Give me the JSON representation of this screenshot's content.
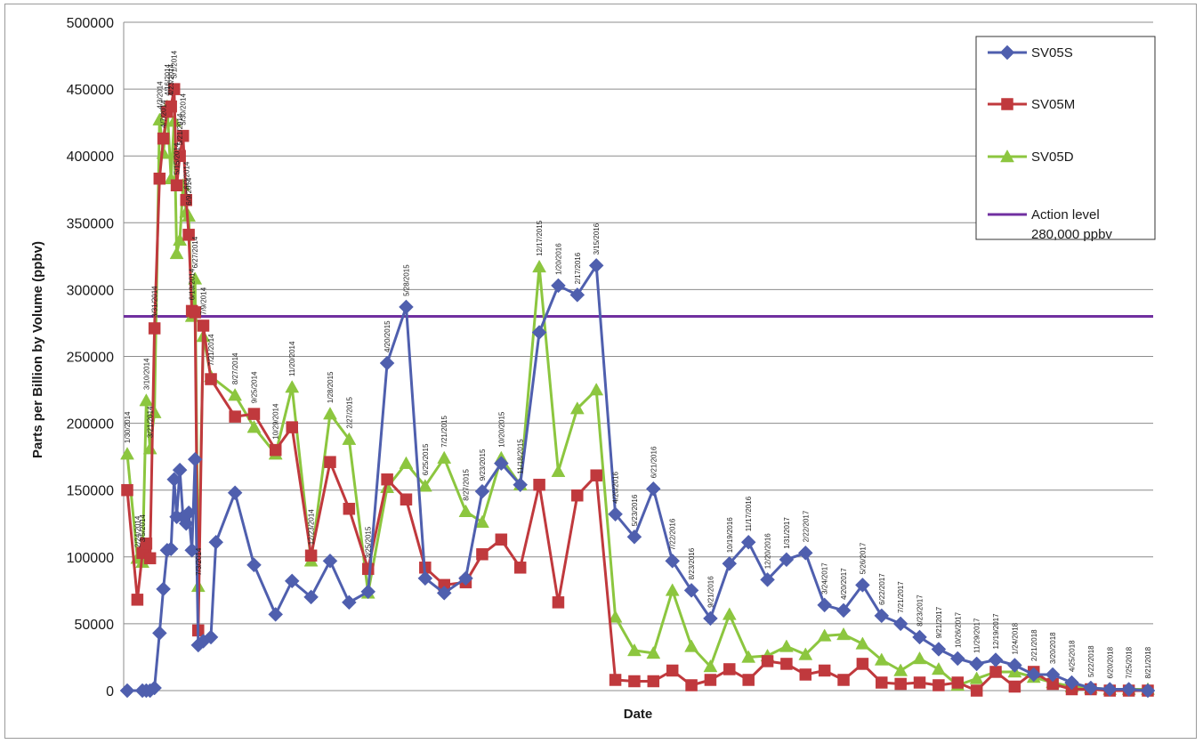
{
  "chart_data": {
    "type": "line",
    "title": "",
    "xlabel": "Date",
    "ylabel": "Parts per Billion by Volume (ppbv)",
    "ylim": [
      0,
      500000
    ],
    "yticks": [
      "0",
      "50000",
      "100000",
      "150000",
      "200000",
      "250000",
      "300000",
      "350000",
      "400000",
      "450000",
      "500000"
    ],
    "grid": "horizontal",
    "legend_position": "top-right",
    "date_labels": [
      {
        "x": 1.0,
        "text": "1/30/2014"
      },
      {
        "x": 2.6,
        "text": "2/24/2014"
      },
      {
        "x": 3.4,
        "text": "3/5/2014"
      },
      {
        "x": 4.0,
        "text": "3/10/2014"
      },
      {
        "x": 4.6,
        "text": "3/21/2014"
      },
      {
        "x": 5.3,
        "text": "3/31/2014"
      },
      {
        "x": 6.1,
        "text": "4/3/2014"
      },
      {
        "x": 6.7,
        "text": "4/7/2014"
      },
      {
        "x": 7.3,
        "text": "4/16/2014"
      },
      {
        "x": 7.9,
        "text": "4/23/2014"
      },
      {
        "x": 8.4,
        "text": "5/1/2014"
      },
      {
        "x": 8.8,
        "text": "5/15/2014"
      },
      {
        "x": 9.3,
        "text": "5/21/2014"
      },
      {
        "x": 9.8,
        "text": "5/30/2014"
      },
      {
        "x": 10.3,
        "text": "6/3/2014"
      },
      {
        "x": 10.7,
        "text": "6/9/2014"
      },
      {
        "x": 11.2,
        "text": "6/19/2014"
      },
      {
        "x": 11.7,
        "text": "6/27/2014"
      },
      {
        "x": 12.2,
        "text": "7/3/2014"
      },
      {
        "x": 13.0,
        "text": "7/9/2014"
      },
      {
        "x": 14.2,
        "text": "7/21/2014"
      },
      {
        "x": 18.0,
        "text": "8/27/2014"
      },
      {
        "x": 21.0,
        "text": "9/25/2014"
      },
      {
        "x": 24.4,
        "text": "10/29/2014"
      },
      {
        "x": 27.0,
        "text": "11/20/2014"
      },
      {
        "x": 30.0,
        "text": "12/23/2014"
      },
      {
        "x": 33.0,
        "text": "1/28/2015"
      },
      {
        "x": 36.0,
        "text": "2/27/2015"
      },
      {
        "x": 39.0,
        "text": "3/25/2015"
      },
      {
        "x": 42.0,
        "text": "4/20/2015"
      },
      {
        "x": 45.0,
        "text": "5/28/2015"
      },
      {
        "x": 48.0,
        "text": "6/25/2015"
      },
      {
        "x": 51.0,
        "text": "7/21/2015"
      },
      {
        "x": 54.4,
        "text": "8/27/2015"
      },
      {
        "x": 57.0,
        "text": "9/23/2015"
      },
      {
        "x": 60.0,
        "text": "10/20/2015"
      },
      {
        "x": 63.0,
        "text": "11/18/2015"
      },
      {
        "x": 66.0,
        "text": "12/17/2015"
      },
      {
        "x": 69.0,
        "text": "1/20/2016"
      },
      {
        "x": 72.0,
        "text": "2/17/2016"
      },
      {
        "x": 75.0,
        "text": "3/15/2016"
      },
      {
        "x": 78.0,
        "text": "4/20/2016"
      },
      {
        "x": 81.0,
        "text": "5/23/2016"
      },
      {
        "x": 84.0,
        "text": "6/21/2016"
      },
      {
        "x": 87.0,
        "text": "7/22/2016"
      },
      {
        "x": 90.0,
        "text": "8/23/2016"
      },
      {
        "x": 93.0,
        "text": "9/21/2016"
      },
      {
        "x": 96.0,
        "text": "10/19/2016"
      },
      {
        "x": 99.0,
        "text": "11/17/2016"
      },
      {
        "x": 102.0,
        "text": "12/20/2016"
      },
      {
        "x": 105.0,
        "text": "1/31/2017"
      },
      {
        "x": 108.0,
        "text": "2/22/2017"
      },
      {
        "x": 111.0,
        "text": "3/24/2017"
      },
      {
        "x": 114.0,
        "text": "4/20/2017"
      },
      {
        "x": 117.0,
        "text": "5/26/2017"
      },
      {
        "x": 120.0,
        "text": "6/22/2017"
      },
      {
        "x": 123.0,
        "text": "7/21/2017"
      },
      {
        "x": 126.0,
        "text": "8/23/2017"
      },
      {
        "x": 129.0,
        "text": "9/21/2017"
      },
      {
        "x": 132.0,
        "text": "10/26/2017"
      },
      {
        "x": 135.0,
        "text": "11/29/2017"
      },
      {
        "x": 138.0,
        "text": "12/19/2017"
      },
      {
        "x": 141.0,
        "text": "1/24/2018"
      },
      {
        "x": 144.0,
        "text": "2/21/2018"
      },
      {
        "x": 147.0,
        "text": "3/20/2018"
      },
      {
        "x": 150.0,
        "text": "4/25/2018"
      },
      {
        "x": 153.0,
        "text": "5/22/2018"
      },
      {
        "x": 156.0,
        "text": "6/20/2018"
      },
      {
        "x": 159.0,
        "text": "7/25/2018"
      },
      {
        "x": 162.0,
        "text": "8/21/2018"
      }
    ],
    "series": [
      {
        "name": "SV05S",
        "color": "#4f5fae",
        "marker": "diamond",
        "points": [
          [
            1.0,
            0
          ],
          [
            3.4,
            0
          ],
          [
            4.0,
            0
          ],
          [
            4.6,
            0
          ],
          [
            5.3,
            2000
          ],
          [
            6.1,
            43000
          ],
          [
            6.7,
            76000
          ],
          [
            7.3,
            105000
          ],
          [
            7.9,
            106000
          ],
          [
            8.4,
            158000
          ],
          [
            8.8,
            130000
          ],
          [
            9.3,
            165000
          ],
          [
            9.8,
            130000
          ],
          [
            10.3,
            125000
          ],
          [
            10.7,
            133000
          ],
          [
            11.2,
            105000
          ],
          [
            11.7,
            173000
          ],
          [
            12.2,
            34000
          ],
          [
            13.0,
            37000
          ],
          [
            14.2,
            40000
          ],
          [
            15.0,
            111000
          ],
          [
            18.0,
            148000
          ],
          [
            21.0,
            94000
          ],
          [
            24.4,
            57000
          ],
          [
            27.0,
            82000
          ],
          [
            30.0,
            70000
          ],
          [
            33.0,
            97000
          ],
          [
            36.0,
            66000
          ],
          [
            39.0,
            74000
          ],
          [
            42.0,
            245000
          ],
          [
            45.0,
            287000
          ],
          [
            48.0,
            84000
          ],
          [
            51.0,
            73000
          ],
          [
            54.4,
            84000
          ],
          [
            57.0,
            149000
          ],
          [
            60.0,
            170000
          ],
          [
            63.0,
            154000
          ],
          [
            66.0,
            268000
          ],
          [
            69.0,
            303000
          ],
          [
            72.0,
            296000
          ],
          [
            75.0,
            318000
          ],
          [
            78.0,
            132000
          ],
          [
            81.0,
            115000
          ],
          [
            84.0,
            151000
          ],
          [
            87.0,
            97000
          ],
          [
            90.0,
            75000
          ],
          [
            93.0,
            54000
          ],
          [
            96.0,
            95000
          ],
          [
            99.0,
            111000
          ],
          [
            102.0,
            83000
          ],
          [
            105.0,
            98000
          ],
          [
            108.0,
            103000
          ],
          [
            111.0,
            64000
          ],
          [
            114.0,
            60000
          ],
          [
            117.0,
            79000
          ],
          [
            120.0,
            56000
          ],
          [
            123.0,
            50000
          ],
          [
            126.0,
            40000
          ],
          [
            129.0,
            31000
          ],
          [
            132.0,
            24000
          ],
          [
            135.0,
            20000
          ],
          [
            138.0,
            23000
          ],
          [
            141.0,
            19000
          ],
          [
            144.0,
            12000
          ],
          [
            147.0,
            12000
          ],
          [
            150.0,
            6000
          ],
          [
            153.0,
            2000
          ],
          [
            156.0,
            1000
          ],
          [
            159.0,
            1000
          ],
          [
            162.0,
            0
          ]
        ]
      },
      {
        "name": "SV05M",
        "color": "#c0393d",
        "marker": "square",
        "points": [
          [
            1.0,
            150000
          ],
          [
            2.6,
            68000
          ],
          [
            3.4,
            103000
          ],
          [
            4.0,
            110000
          ],
          [
            4.6,
            99000
          ],
          [
            5.3,
            271000
          ],
          [
            6.1,
            383000
          ],
          [
            6.7,
            413000
          ],
          [
            7.3,
            433000
          ],
          [
            7.9,
            437000
          ],
          [
            8.4,
            450000
          ],
          [
            8.8,
            378000
          ],
          [
            9.3,
            400000
          ],
          [
            9.8,
            415000
          ],
          [
            10.3,
            367000
          ],
          [
            10.7,
            341000
          ],
          [
            11.2,
            284000
          ],
          [
            11.7,
            283000
          ],
          [
            12.2,
            45000
          ],
          [
            13.0,
            273000
          ],
          [
            14.2,
            233000
          ],
          [
            18.0,
            205000
          ],
          [
            21.0,
            207000
          ],
          [
            24.4,
            180000
          ],
          [
            27.0,
            197000
          ],
          [
            30.0,
            101000
          ],
          [
            33.0,
            171000
          ],
          [
            36.0,
            136000
          ],
          [
            39.0,
            91000
          ],
          [
            42.0,
            158000
          ],
          [
            45.0,
            143000
          ],
          [
            48.0,
            92000
          ],
          [
            51.0,
            79000
          ],
          [
            54.4,
            81000
          ],
          [
            57.0,
            102000
          ],
          [
            60.0,
            113000
          ],
          [
            63.0,
            92000
          ],
          [
            66.0,
            154000
          ],
          [
            69.0,
            66000
          ],
          [
            72.0,
            146000
          ],
          [
            75.0,
            161000
          ],
          [
            78.0,
            8000
          ],
          [
            81.0,
            7000
          ],
          [
            84.0,
            7000
          ],
          [
            87.0,
            15000
          ],
          [
            90.0,
            4000
          ],
          [
            93.0,
            8000
          ],
          [
            96.0,
            16000
          ],
          [
            99.0,
            8000
          ],
          [
            102.0,
            22000
          ],
          [
            105.0,
            20000
          ],
          [
            108.0,
            12000
          ],
          [
            111.0,
            15000
          ],
          [
            114.0,
            8000
          ],
          [
            117.0,
            20000
          ],
          [
            120.0,
            6000
          ],
          [
            123.0,
            5000
          ],
          [
            126.0,
            6000
          ],
          [
            129.0,
            4000
          ],
          [
            132.0,
            6000
          ],
          [
            135.0,
            0
          ],
          [
            138.0,
            14000
          ],
          [
            141.0,
            3000
          ],
          [
            144.0,
            14000
          ],
          [
            147.0,
            5000
          ],
          [
            150.0,
            1000
          ],
          [
            153.0,
            1000
          ],
          [
            156.0,
            0
          ],
          [
            159.0,
            0
          ],
          [
            162.0,
            0
          ]
        ]
      },
      {
        "name": "SV05D",
        "color": "#8cc63f",
        "marker": "triangle",
        "points": [
          [
            1.0,
            177000
          ],
          [
            2.6,
            99000
          ],
          [
            3.4,
            96000
          ],
          [
            4.0,
            217000
          ],
          [
            4.6,
            181000
          ],
          [
            5.3,
            208000
          ],
          [
            6.1,
            427000
          ],
          [
            6.7,
            402000
          ],
          [
            7.3,
            437000
          ],
          [
            7.9,
            383000
          ],
          [
            8.4,
            426000
          ],
          [
            8.8,
            327000
          ],
          [
            9.3,
            337000
          ],
          [
            9.8,
            378000
          ],
          [
            10.3,
            358000
          ],
          [
            10.7,
            355000
          ],
          [
            11.2,
            280000
          ],
          [
            11.7,
            308000
          ],
          [
            12.2,
            78000
          ],
          [
            13.0,
            265000
          ],
          [
            14.2,
            235000
          ],
          [
            18.0,
            221000
          ],
          [
            21.0,
            197000
          ],
          [
            24.4,
            177000
          ],
          [
            27.0,
            227000
          ],
          [
            30.0,
            97000
          ],
          [
            33.0,
            207000
          ],
          [
            36.0,
            188000
          ],
          [
            39.0,
            73000
          ],
          [
            42.0,
            152000
          ],
          [
            45.0,
            170000
          ],
          [
            48.0,
            153000
          ],
          [
            51.0,
            174000
          ],
          [
            54.4,
            134000
          ],
          [
            57.0,
            126000
          ],
          [
            60.0,
            174000
          ],
          [
            63.0,
            154000
          ],
          [
            66.0,
            317000
          ],
          [
            69.0,
            164000
          ],
          [
            72.0,
            211000
          ],
          [
            75.0,
            225000
          ],
          [
            78.0,
            55000
          ],
          [
            81.0,
            30000
          ],
          [
            84.0,
            28000
          ],
          [
            87.0,
            75000
          ],
          [
            90.0,
            33000
          ],
          [
            93.0,
            18000
          ],
          [
            96.0,
            57000
          ],
          [
            99.0,
            25000
          ],
          [
            102.0,
            26000
          ],
          [
            105.0,
            33000
          ],
          [
            108.0,
            27000
          ],
          [
            111.0,
            41000
          ],
          [
            114.0,
            42000
          ],
          [
            117.0,
            35000
          ],
          [
            120.0,
            23000
          ],
          [
            123.0,
            15000
          ],
          [
            126.0,
            24000
          ],
          [
            129.0,
            16000
          ],
          [
            132.0,
            4000
          ],
          [
            135.0,
            9000
          ],
          [
            138.0,
            14000
          ],
          [
            141.0,
            14000
          ],
          [
            144.0,
            10000
          ],
          [
            147.0,
            6000
          ],
          [
            150.0,
            3000
          ],
          [
            153.0,
            2000
          ],
          [
            156.0,
            1000
          ],
          [
            159.0,
            1000
          ],
          [
            162.0,
            1000
          ]
        ]
      }
    ],
    "reference_line": {
      "name": "Action level 280,000 ppbv",
      "label_line1": "Action level",
      "label_line2": "280,000 ppbv",
      "value": 280000,
      "color": "#7030a0"
    }
  }
}
